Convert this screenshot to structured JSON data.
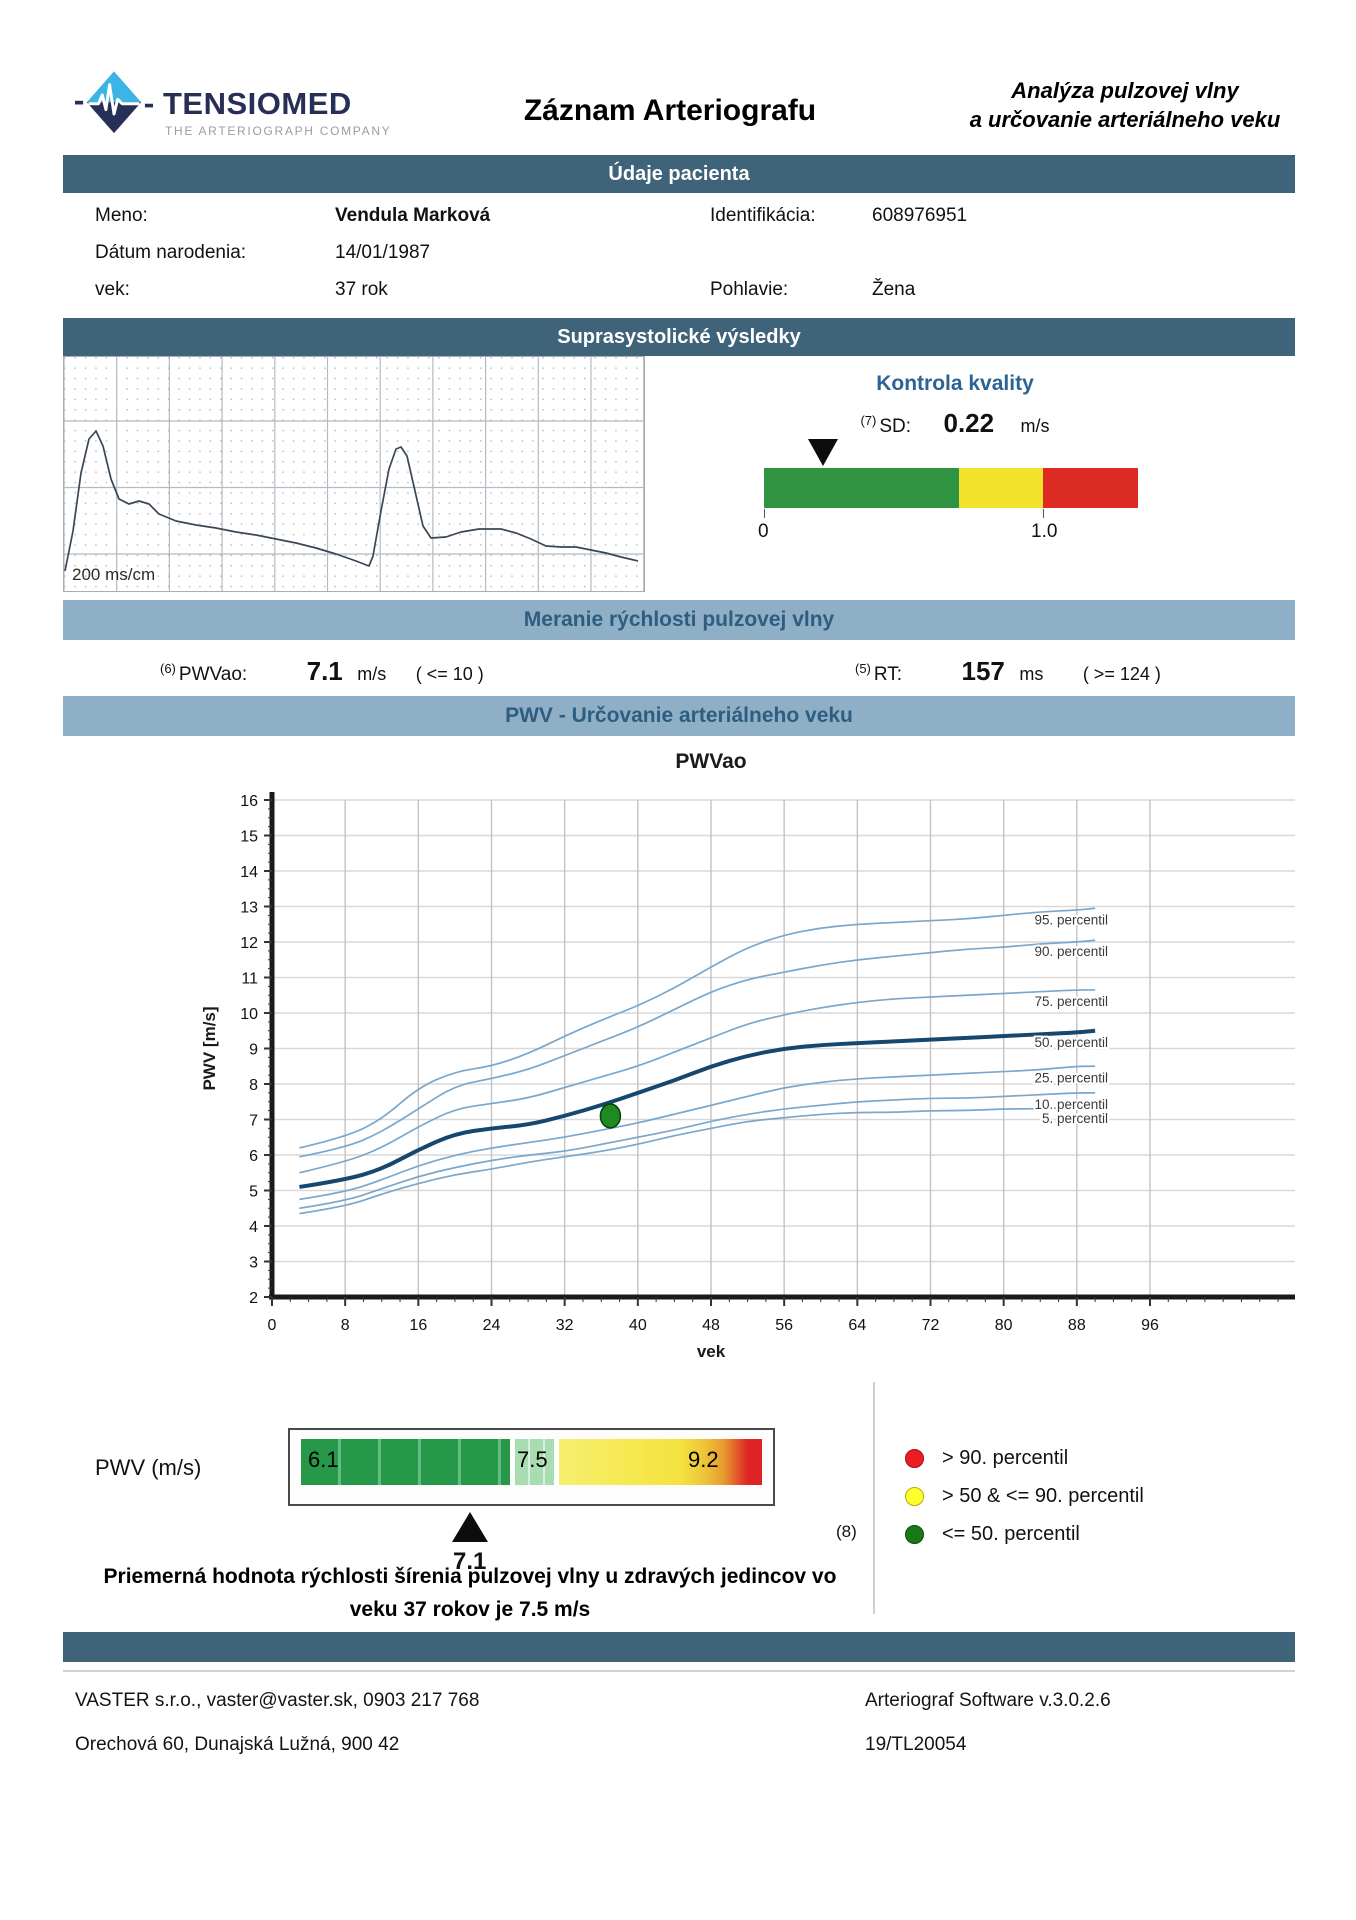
{
  "header": {
    "brand": "TENSIOMED",
    "brand_tagline": "THE ARTERIOGRAPH COMPANY",
    "title": "Záznam Arteriografu",
    "subtitle_line1": "Analýza pulzovej vlny",
    "subtitle_line2": "a určovanie arteriálneho veku"
  },
  "sections": {
    "patient": "Údaje pacienta",
    "suprasystolic": "Suprasystolické výsledky",
    "pwv_measure": "Meranie rýchlosti pulzovej vlny",
    "pwv_age": "PWV - Určovanie arteriálneho veku"
  },
  "patient": {
    "name_label": "Meno:",
    "name": "Vendula Marková",
    "dob_label": "Dátum narodenia:",
    "dob": "14/01/1987",
    "age_label": "vek:",
    "age": "37 rok",
    "id_label": "Identifikácia:",
    "id": "608976951",
    "sex_label": "Pohlavie:",
    "sex": "Žena"
  },
  "waveform": {
    "scale_label": "200 ms/cm",
    "points": [
      [
        1,
        214
      ],
      [
        9,
        174
      ],
      [
        17,
        116
      ],
      [
        25,
        82
      ],
      [
        32,
        74
      ],
      [
        39,
        89
      ],
      [
        47,
        122
      ],
      [
        55,
        142
      ],
      [
        65,
        147
      ],
      [
        75,
        144
      ],
      [
        85,
        147
      ],
      [
        95,
        157
      ],
      [
        112,
        164
      ],
      [
        132,
        168
      ],
      [
        152,
        171
      ],
      [
        172,
        175
      ],
      [
        192,
        178
      ],
      [
        212,
        182
      ],
      [
        232,
        186
      ],
      [
        252,
        191
      ],
      [
        272,
        197
      ],
      [
        292,
        204
      ],
      [
        305,
        209
      ],
      [
        309,
        199
      ],
      [
        317,
        154
      ],
      [
        325,
        112
      ],
      [
        332,
        92
      ],
      [
        337,
        90
      ],
      [
        343,
        99
      ],
      [
        351,
        134
      ],
      [
        359,
        169
      ],
      [
        367,
        181
      ],
      [
        382,
        180
      ],
      [
        397,
        175
      ],
      [
        415,
        172
      ],
      [
        437,
        172
      ],
      [
        452,
        176
      ],
      [
        467,
        182
      ],
      [
        482,
        189
      ],
      [
        497,
        190
      ],
      [
        512,
        190
      ],
      [
        527,
        193
      ],
      [
        542,
        196
      ],
      [
        557,
        200
      ],
      [
        574,
        204
      ]
    ]
  },
  "quality": {
    "title": "Kontrola kvality",
    "ref": "(7)",
    "sd_label": "SD:",
    "sd_value": "0.22",
    "sd_unit": "m/s",
    "axis_min": "0",
    "axis_max": "1.0",
    "marker_pct": 15.8,
    "axis_max_pct": 74.6,
    "segments": [
      {
        "color": "#2f9342",
        "pct": 52.1
      },
      {
        "color": "#f2e42c",
        "pct": 22.5
      },
      {
        "color": "#dc2b24",
        "pct": 25.4
      }
    ]
  },
  "measurement": {
    "pwv_ref": "(6)",
    "pwv_label": "PWVao:",
    "pwv_value": "7.1",
    "pwv_unit": "m/s",
    "pwv_range": "( <= 10 )",
    "rt_ref": "(5)",
    "rt_label": "RT:",
    "rt_value": "157",
    "rt_unit": "ms",
    "rt_range": "( >= 124 )"
  },
  "chart_data": {
    "type": "line",
    "title": "PWVao",
    "xlabel": "vek",
    "ylabel": "PWV [m/s]",
    "xlim": [
      0,
      96
    ],
    "ylim": [
      2,
      16
    ],
    "x_ticks": [
      0,
      8,
      16,
      24,
      32,
      40,
      48,
      56,
      64,
      72,
      80,
      88,
      96
    ],
    "grid": true,
    "x": [
      3,
      8,
      12,
      16,
      20,
      24,
      28,
      32,
      36,
      40,
      44,
      48,
      52,
      56,
      60,
      64,
      68,
      72,
      76,
      80,
      84,
      88,
      90
    ],
    "series": [
      {
        "name": "95. percentil",
        "bold": false,
        "values": [
          6.2,
          6.5,
          7.0,
          7.9,
          8.35,
          8.5,
          8.85,
          9.35,
          9.8,
          10.2,
          10.7,
          11.3,
          11.85,
          12.2,
          12.4,
          12.5,
          12.55,
          12.6,
          12.65,
          12.75,
          12.85,
          12.9,
          12.95
        ]
      },
      {
        "name": "90. percentil",
        "bold": false,
        "values": [
          5.95,
          6.2,
          6.65,
          7.3,
          7.95,
          8.15,
          8.4,
          8.8,
          9.2,
          9.6,
          10.1,
          10.6,
          10.95,
          11.15,
          11.35,
          11.5,
          11.6,
          11.7,
          11.8,
          11.85,
          11.95,
          12.0,
          12.05
        ]
      },
      {
        "name": "75. percentil",
        "bold": false,
        "values": [
          5.5,
          5.8,
          6.2,
          6.8,
          7.3,
          7.45,
          7.6,
          7.9,
          8.2,
          8.5,
          8.9,
          9.3,
          9.7,
          9.95,
          10.15,
          10.3,
          10.4,
          10.45,
          10.5,
          10.55,
          10.6,
          10.65,
          10.65
        ]
      },
      {
        "name": "50. percentil",
        "bold": true,
        "values": [
          5.1,
          5.3,
          5.6,
          6.15,
          6.6,
          6.75,
          6.85,
          7.1,
          7.4,
          7.75,
          8.1,
          8.5,
          8.8,
          9.0,
          9.1,
          9.15,
          9.2,
          9.25,
          9.3,
          9.35,
          9.4,
          9.45,
          9.5
        ]
      },
      {
        "name": "25. percentil",
        "bold": false,
        "values": [
          4.75,
          4.95,
          5.3,
          5.7,
          6.0,
          6.2,
          6.35,
          6.5,
          6.7,
          6.9,
          7.15,
          7.4,
          7.65,
          7.9,
          8.05,
          8.15,
          8.2,
          8.25,
          8.3,
          8.35,
          8.4,
          8.5,
          8.5
        ]
      },
      {
        "name": "10. percentil",
        "bold": false,
        "values": [
          4.5,
          4.7,
          5.05,
          5.4,
          5.65,
          5.85,
          6.0,
          6.1,
          6.3,
          6.5,
          6.7,
          6.95,
          7.15,
          7.3,
          7.4,
          7.5,
          7.55,
          7.6,
          7.6,
          7.65,
          7.7,
          7.75,
          7.75
        ]
      },
      {
        "name": "5. percentil",
        "bold": false,
        "values": [
          4.35,
          4.55,
          4.9,
          5.2,
          5.45,
          5.6,
          5.8,
          5.95,
          6.1,
          6.3,
          6.55,
          6.75,
          6.95,
          7.05,
          7.15,
          7.2,
          7.2,
          7.25,
          7.25,
          7.3,
          7.3,
          7.35,
          7.35
        ]
      }
    ],
    "patient_point": {
      "x": 37,
      "y": 7.1,
      "color": "#1f8a1f"
    }
  },
  "scale": {
    "label": "PWV (m/s)",
    "green_label": "6.1",
    "mid_label": "7.5",
    "high_label": "9.2",
    "marker_label": "7.1",
    "marker_pct": 36.6,
    "ref": "(8)"
  },
  "legend": {
    "items": [
      {
        "color": "#ee1c25",
        "border": "#9e0e14",
        "label": "> 90. percentil"
      },
      {
        "color": "#ffff2e",
        "border": "#b9a800",
        "label": "> 50 & <= 90. percentil"
      },
      {
        "color": "#177a17",
        "border": "#0c4a0c",
        "label": "<= 50. percentil"
      }
    ]
  },
  "summary": {
    "line1": "Priemerná hodnota rýchlosti šírenia pulzovej vlny u zdravých jedincov vo",
    "line2": "veku 37 rokov je  7.5 m/s"
  },
  "footer": {
    "company_line1": "VASTER s.r.o., vaster@vaster.sk, 0903 217 768",
    "company_line2": "Orechová 60,  Dunajská Lužná,  900 42",
    "software_line1": "Arteriograf Software    v.3.0.2.6",
    "software_line2": "19/TL20054"
  }
}
